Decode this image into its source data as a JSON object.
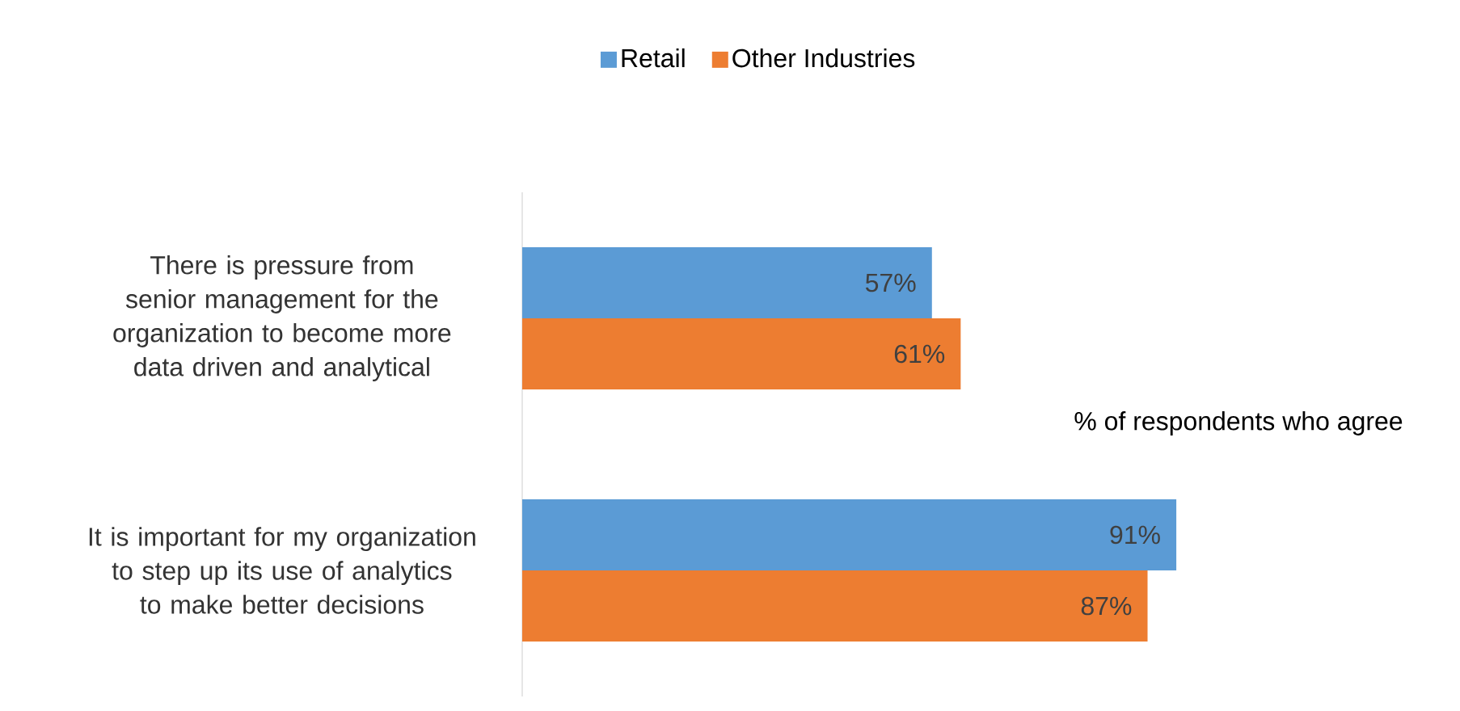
{
  "chart_data": {
    "type": "bar",
    "orientation": "horizontal",
    "categories": [
      "There is pressure from senior management for the organization to become more data driven and analytical",
      "It is important for my organization to step up its use of analytics to make better decisions"
    ],
    "series": [
      {
        "name": "Retail",
        "color": "#5b9bd5",
        "values": [
          57,
          91
        ],
        "value_labels": [
          "57%",
          "91%"
        ]
      },
      {
        "name": "Other Industries",
        "color": "#ed7d31",
        "values": [
          61,
          87
        ],
        "value_labels": [
          "61%",
          "87%"
        ]
      }
    ],
    "legend": "top",
    "annotations": [
      "% of respondents who agree"
    ]
  }
}
